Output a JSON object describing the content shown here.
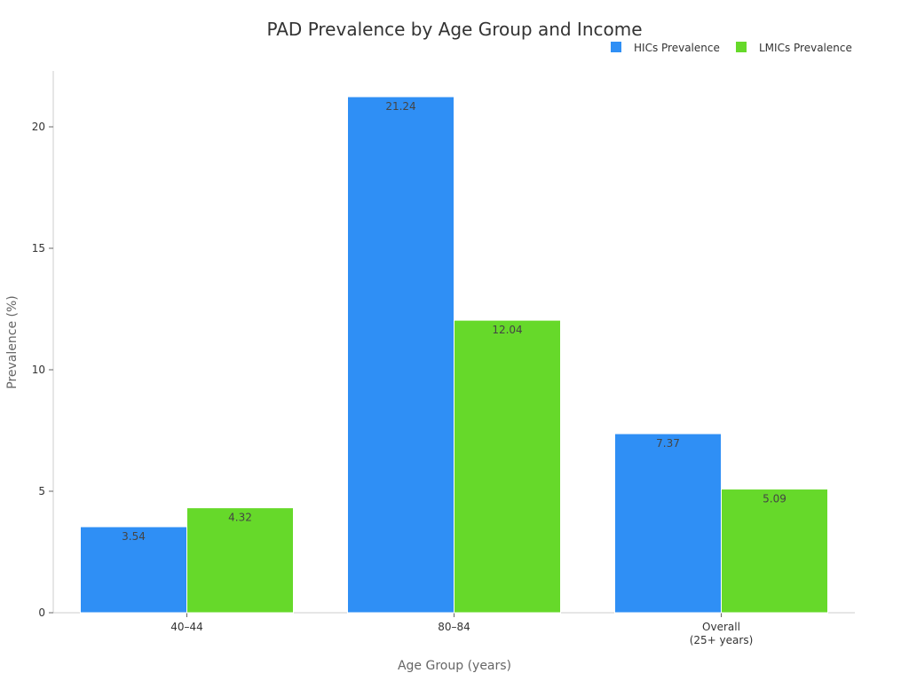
{
  "chart_data": {
    "type": "bar",
    "title": "PAD Prevalence by Age Group and Income",
    "xlabel": "Age Group (years)",
    "ylabel": "Prevalence (%)",
    "categories": [
      [
        "40–44"
      ],
      [
        "80–84"
      ],
      [
        "Overall",
        "(25+ years)"
      ]
    ],
    "series": [
      {
        "name": "HICs Prevalence",
        "color": "#2f8ff5",
        "values": [
          3.54,
          21.24,
          7.37
        ]
      },
      {
        "name": "LMICs Prevalence",
        "color": "#66d92a",
        "values": [
          4.32,
          12.04,
          5.09
        ]
      }
    ],
    "ylim": [
      0,
      22.3
    ],
    "yticks": [
      0,
      5,
      10,
      15,
      20
    ],
    "grid": false,
    "legend": "top-right",
    "data_labels": true
  }
}
